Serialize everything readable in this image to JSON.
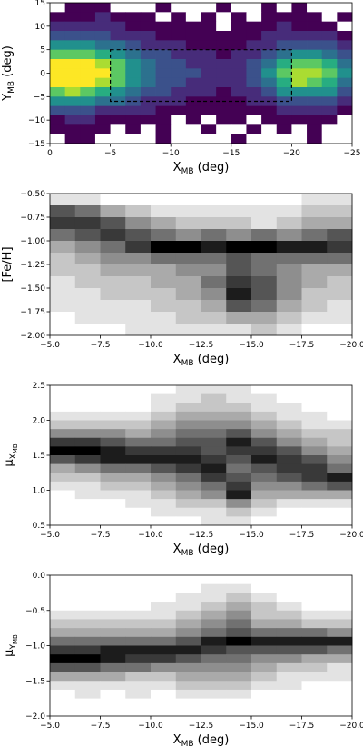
{
  "chart_data": [
    {
      "type": "heatmap",
      "colormap": "viridis",
      "xlabel": {
        "text": "X",
        "sub": "MB",
        "suffix": " (deg)"
      },
      "ylabel": {
        "text": "Y",
        "sub": "MB",
        "suffix": " (deg)"
      },
      "xlim": [
        0,
        -25
      ],
      "ylim": [
        -15,
        15
      ],
      "xticks": [
        0,
        {
          "value": -5,
          "label": "−5"
        },
        {
          "value": -10,
          "label": "−10"
        },
        {
          "value": -15,
          "label": "−15"
        },
        {
          "value": -20,
          "label": "−20"
        },
        {
          "value": -25,
          "label": "−25"
        }
      ],
      "yticks": [
        15,
        10,
        5,
        0,
        {
          "value": -5,
          "label": "−5"
        },
        {
          "value": -10,
          "label": "−10"
        },
        {
          "value": -15,
          "label": "−15"
        }
      ],
      "region": {
        "x": [
          -5,
          -20
        ],
        "y": [
          -6,
          5
        ]
      },
      "values": [
        [
          0,
          1,
          1,
          1,
          0,
          0,
          0,
          1,
          0,
          0,
          0,
          1,
          0,
          0,
          1,
          0,
          1,
          0,
          0,
          0
        ],
        [
          1,
          1,
          1,
          2,
          1,
          1,
          1,
          0,
          1,
          0,
          1,
          0,
          1,
          0,
          1,
          1,
          1,
          1,
          0,
          1
        ],
        [
          2,
          2,
          2,
          2,
          2,
          1,
          1,
          1,
          1,
          1,
          1,
          0,
          1,
          1,
          1,
          2,
          1,
          1,
          1,
          0
        ],
        [
          3,
          3,
          3,
          3,
          2,
          2,
          2,
          1,
          1,
          1,
          1,
          1,
          1,
          1,
          2,
          2,
          2,
          2,
          2,
          1
        ],
        [
          5,
          5,
          5,
          4,
          4,
          3,
          2,
          2,
          2,
          1,
          1,
          1,
          1,
          2,
          2,
          3,
          3,
          3,
          3,
          2
        ],
        [
          7,
          7,
          7,
          6,
          5,
          4,
          3,
          3,
          2,
          2,
          2,
          1,
          2,
          2,
          3,
          4,
          5,
          5,
          4,
          3
        ],
        [
          9,
          9,
          9,
          8,
          7,
          5,
          4,
          3,
          3,
          2,
          2,
          2,
          2,
          3,
          4,
          6,
          7,
          7,
          6,
          4
        ],
        [
          9,
          9,
          9,
          9,
          7,
          5,
          4,
          3,
          3,
          3,
          2,
          2,
          2,
          3,
          5,
          7,
          8,
          8,
          7,
          5
        ],
        [
          9,
          9,
          9,
          8,
          7,
          5,
          4,
          3,
          3,
          2,
          2,
          2,
          2,
          3,
          4,
          6,
          8,
          7,
          6,
          4
        ],
        [
          7,
          8,
          7,
          6,
          5,
          4,
          3,
          3,
          2,
          2,
          2,
          1,
          2,
          2,
          3,
          5,
          5,
          5,
          5,
          3
        ],
        [
          5,
          5,
          5,
          4,
          4,
          3,
          2,
          2,
          2,
          1,
          1,
          1,
          1,
          2,
          2,
          3,
          3,
          3,
          3,
          2
        ],
        [
          3,
          3,
          3,
          2,
          2,
          2,
          2,
          1,
          1,
          1,
          1,
          1,
          1,
          1,
          1,
          2,
          2,
          2,
          2,
          1
        ],
        [
          1,
          2,
          2,
          1,
          1,
          1,
          1,
          1,
          0,
          1,
          0,
          1,
          1,
          0,
          1,
          1,
          1,
          1,
          1,
          0
        ],
        [
          1,
          1,
          1,
          1,
          0,
          1,
          0,
          1,
          0,
          0,
          1,
          0,
          0,
          1,
          0,
          1,
          0,
          1,
          0,
          0
        ],
        [
          0,
          1,
          1,
          0,
          0,
          0,
          0,
          1,
          0,
          0,
          0,
          0,
          1,
          0,
          0,
          0,
          0,
          1,
          0,
          0
        ]
      ]
    },
    {
      "type": "heatmap",
      "colormap": "Greys",
      "xlabel": {
        "text": "X",
        "sub": "MB",
        "suffix": " (deg)"
      },
      "ylabel": "[Fe/H]",
      "xlim": [
        -5,
        -20
      ],
      "ylim": [
        -2.0,
        -0.5
      ],
      "xticks": [
        {
          "value": -5,
          "label": "−5.0"
        },
        {
          "value": -7.5,
          "label": "−7.5"
        },
        {
          "value": -10,
          "label": "−10.0"
        },
        {
          "value": -12.5,
          "label": "−12.5"
        },
        {
          "value": -15,
          "label": "−15.0"
        },
        {
          "value": -17.5,
          "label": "−17.5"
        },
        {
          "value": -20,
          "label": "−20.0"
        }
      ],
      "yticks": [
        {
          "value": -0.5,
          "label": "−0.50"
        },
        {
          "value": -0.75,
          "label": "−0.75"
        },
        {
          "value": -1.0,
          "label": "−1.00"
        },
        {
          "value": -1.25,
          "label": "−1.25"
        },
        {
          "value": -1.5,
          "label": "−1.50"
        },
        {
          "value": -1.75,
          "label": "−1.75"
        },
        {
          "value": -2.0,
          "label": "−2.00"
        }
      ],
      "values": [
        [
          1,
          1,
          0,
          0,
          0,
          0,
          0,
          0,
          0,
          0,
          1,
          1
        ],
        [
          6,
          5,
          3,
          2,
          1,
          1,
          1,
          1,
          1,
          1,
          2,
          2
        ],
        [
          7,
          7,
          6,
          4,
          3,
          2,
          2,
          2,
          1,
          2,
          3,
          3
        ],
        [
          5,
          6,
          7,
          6,
          5,
          4,
          5,
          4,
          5,
          4,
          5,
          6
        ],
        [
          3,
          4,
          5,
          7,
          9,
          9,
          8,
          9,
          9,
          8,
          8,
          7
        ],
        [
          2,
          3,
          4,
          4,
          5,
          5,
          5,
          6,
          5,
          5,
          5,
          5
        ],
        [
          2,
          2,
          3,
          3,
          3,
          4,
          4,
          6,
          5,
          4,
          3,
          3
        ],
        [
          1,
          2,
          2,
          2,
          3,
          3,
          5,
          7,
          6,
          4,
          3,
          2
        ],
        [
          1,
          1,
          2,
          2,
          2,
          3,
          4,
          8,
          6,
          4,
          2,
          2
        ],
        [
          1,
          1,
          1,
          1,
          2,
          2,
          3,
          6,
          5,
          3,
          2,
          1
        ],
        [
          0,
          1,
          1,
          1,
          1,
          2,
          2,
          3,
          3,
          2,
          1,
          1
        ],
        [
          0,
          0,
          0,
          1,
          1,
          1,
          1,
          1,
          2,
          1,
          0,
          0
        ]
      ]
    },
    {
      "type": "heatmap",
      "colormap": "Greys",
      "xlabel": {
        "text": "X",
        "sub": "MB",
        "suffix": " (deg)"
      },
      "ylabel": {
        "text": "μ",
        "sub": "X",
        "subsub": "MB"
      },
      "xlim": [
        -5,
        -20
      ],
      "ylim": [
        0.5,
        2.5
      ],
      "xticks": [
        {
          "value": -5,
          "label": "−5.0"
        },
        {
          "value": -7.5,
          "label": "−7.5"
        },
        {
          "value": -10,
          "label": "−10.0"
        },
        {
          "value": -12.5,
          "label": "−12.5"
        },
        {
          "value": -15,
          "label": "−15.0"
        },
        {
          "value": -17.5,
          "label": "−17.5"
        },
        {
          "value": -20,
          "label": "−20.0"
        }
      ],
      "yticks": [
        0.5,
        {
          "value": 1.0,
          "label": "1.0"
        },
        1.5,
        {
          "value": 2.0,
          "label": "2.0"
        },
        2.5
      ],
      "values": [
        [
          0,
          0,
          0,
          0,
          0,
          1,
          1,
          1,
          0,
          0,
          0,
          0
        ],
        [
          0,
          0,
          0,
          0,
          1,
          1,
          2,
          1,
          1,
          0,
          0,
          0
        ],
        [
          0,
          0,
          0,
          0,
          1,
          2,
          2,
          2,
          1,
          1,
          0,
          0
        ],
        [
          1,
          1,
          1,
          1,
          2,
          3,
          3,
          3,
          2,
          1,
          1,
          0
        ],
        [
          2,
          2,
          2,
          2,
          3,
          4,
          4,
          4,
          3,
          2,
          1,
          1
        ],
        [
          4,
          4,
          4,
          3,
          4,
          5,
          5,
          6,
          4,
          3,
          2,
          2
        ],
        [
          7,
          7,
          6,
          5,
          5,
          6,
          6,
          8,
          6,
          4,
          3,
          2
        ],
        [
          9,
          9,
          8,
          7,
          7,
          7,
          6,
          7,
          7,
          6,
          4,
          3
        ],
        [
          6,
          7,
          8,
          8,
          8,
          8,
          7,
          6,
          8,
          7,
          6,
          4
        ],
        [
          3,
          4,
          5,
          5,
          6,
          7,
          8,
          5,
          6,
          7,
          7,
          5
        ],
        [
          2,
          2,
          3,
          3,
          4,
          5,
          7,
          6,
          5,
          6,
          7,
          8
        ],
        [
          1,
          1,
          2,
          2,
          3,
          4,
          5,
          7,
          4,
          4,
          5,
          6
        ],
        [
          0,
          1,
          1,
          1,
          2,
          3,
          4,
          8,
          3,
          3,
          3,
          3
        ],
        [
          0,
          0,
          0,
          1,
          1,
          2,
          2,
          4,
          2,
          1,
          1,
          1
        ],
        [
          0,
          0,
          0,
          0,
          1,
          1,
          1,
          2,
          1,
          0,
          0,
          0
        ],
        [
          0,
          0,
          0,
          0,
          0,
          0,
          1,
          1,
          0,
          0,
          0,
          0
        ]
      ]
    },
    {
      "type": "heatmap",
      "colormap": "Greys",
      "xlabel": {
        "text": "X",
        "sub": "MB",
        "suffix": " (deg)"
      },
      "ylabel": {
        "text": "μ",
        "sub": "Y",
        "subsub": "MB"
      },
      "xlim": [
        -5,
        -20
      ],
      "ylim": [
        -2.0,
        0.0
      ],
      "xticks": [
        {
          "value": -5,
          "label": "−5.0"
        },
        {
          "value": -7.5,
          "label": "−7.5"
        },
        {
          "value": -10,
          "label": "−10.0"
        },
        {
          "value": -12.5,
          "label": "−12.5"
        },
        {
          "value": -15,
          "label": "−15.0"
        },
        {
          "value": -17.5,
          "label": "−17.5"
        },
        {
          "value": -20,
          "label": "−20.0"
        }
      ],
      "yticks": [
        {
          "value": 0.0,
          "label": "0.0"
        },
        {
          "value": -0.5,
          "label": "−0.5"
        },
        {
          "value": -1.0,
          "label": "−1.0"
        },
        {
          "value": -1.5,
          "label": "−1.5"
        },
        {
          "value": -2.0,
          "label": "−2.0"
        }
      ],
      "values": [
        [
          0,
          0,
          0,
          0,
          0,
          0,
          0,
          0,
          0,
          0,
          0,
          0
        ],
        [
          0,
          0,
          0,
          0,
          0,
          0,
          1,
          1,
          0,
          0,
          0,
          0
        ],
        [
          0,
          0,
          0,
          0,
          0,
          1,
          1,
          2,
          1,
          0,
          0,
          0
        ],
        [
          0,
          0,
          0,
          0,
          1,
          1,
          2,
          3,
          2,
          1,
          0,
          0
        ],
        [
          1,
          1,
          1,
          1,
          1,
          2,
          3,
          4,
          2,
          2,
          1,
          1
        ],
        [
          2,
          2,
          2,
          2,
          2,
          3,
          4,
          5,
          3,
          3,
          2,
          2
        ],
        [
          3,
          3,
          3,
          3,
          3,
          4,
          5,
          6,
          5,
          5,
          5,
          4
        ],
        [
          5,
          5,
          5,
          5,
          5,
          6,
          8,
          9,
          8,
          8,
          8,
          8
        ],
        [
          7,
          7,
          8,
          8,
          8,
          8,
          7,
          6,
          6,
          6,
          6,
          5
        ],
        [
          9,
          9,
          8,
          7,
          7,
          6,
          5,
          5,
          4,
          4,
          3,
          3
        ],
        [
          6,
          6,
          5,
          5,
          4,
          4,
          4,
          4,
          3,
          2,
          2,
          1
        ],
        [
          3,
          3,
          3,
          2,
          2,
          3,
          3,
          3,
          2,
          1,
          1,
          1
        ],
        [
          1,
          1,
          1,
          1,
          1,
          2,
          2,
          2,
          1,
          1,
          0,
          0
        ],
        [
          0,
          1,
          0,
          1,
          0,
          1,
          1,
          1,
          0,
          0,
          0,
          0
        ],
        [
          0,
          0,
          0,
          0,
          0,
          0,
          0,
          0,
          0,
          0,
          0,
          0
        ],
        [
          0,
          0,
          0,
          0,
          0,
          0,
          0,
          0,
          0,
          0,
          0,
          0
        ]
      ]
    }
  ]
}
